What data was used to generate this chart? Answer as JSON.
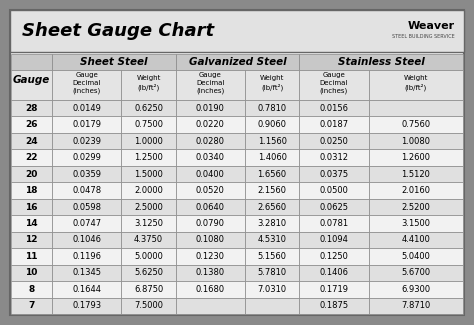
{
  "title": "Sheet Gauge Chart",
  "bg_outer": "#8a8a8a",
  "bg_inner": "#f2f2f2",
  "header1_bg": "#c8c8c8",
  "header2_bg": "#e4e4e4",
  "row_odd": "#e0e0e0",
  "row_even": "#f2f2f2",
  "border_color": "#888888",
  "gauges": [
    28,
    26,
    24,
    22,
    20,
    18,
    16,
    14,
    12,
    11,
    10,
    8,
    7
  ],
  "sheet_steel": [
    [
      "0.0149",
      "0.6250"
    ],
    [
      "0.0179",
      "0.7500"
    ],
    [
      "0.0239",
      "1.0000"
    ],
    [
      "0.0299",
      "1.2500"
    ],
    [
      "0.0359",
      "1.5000"
    ],
    [
      "0.0478",
      "2.0000"
    ],
    [
      "0.0598",
      "2.5000"
    ],
    [
      "0.0747",
      "3.1250"
    ],
    [
      "0.1046",
      "4.3750"
    ],
    [
      "0.1196",
      "5.0000"
    ],
    [
      "0.1345",
      "5.6250"
    ],
    [
      "0.1644",
      "6.8750"
    ],
    [
      "0.1793",
      "7.5000"
    ]
  ],
  "galvanized_steel": [
    [
      "0.0190",
      "0.7810"
    ],
    [
      "0.0220",
      "0.9060"
    ],
    [
      "0.0280",
      "1.1560"
    ],
    [
      "0.0340",
      "1.4060"
    ],
    [
      "0.0400",
      "1.6560"
    ],
    [
      "0.0520",
      "2.1560"
    ],
    [
      "0.0640",
      "2.6560"
    ],
    [
      "0.0790",
      "3.2810"
    ],
    [
      "0.1080",
      "4.5310"
    ],
    [
      "0.1230",
      "5.1560"
    ],
    [
      "0.1380",
      "5.7810"
    ],
    [
      "0.1680",
      "7.0310"
    ],
    [
      "",
      ""
    ]
  ],
  "stainless_steel": [
    [
      "0.0156",
      ""
    ],
    [
      "0.0187",
      "0.7560"
    ],
    [
      "0.0250",
      "1.0080"
    ],
    [
      "0.0312",
      "1.2600"
    ],
    [
      "0.0375",
      "1.5120"
    ],
    [
      "0.0500",
      "2.0160"
    ],
    [
      "0.0625",
      "2.5200"
    ],
    [
      "0.0781",
      "3.1500"
    ],
    [
      "0.1094",
      "4.4100"
    ],
    [
      "0.1250",
      "5.0400"
    ],
    [
      "0.1406",
      "5.6700"
    ],
    [
      "0.1719",
      "6.9300"
    ],
    [
      "0.1875",
      "7.8710"
    ]
  ]
}
